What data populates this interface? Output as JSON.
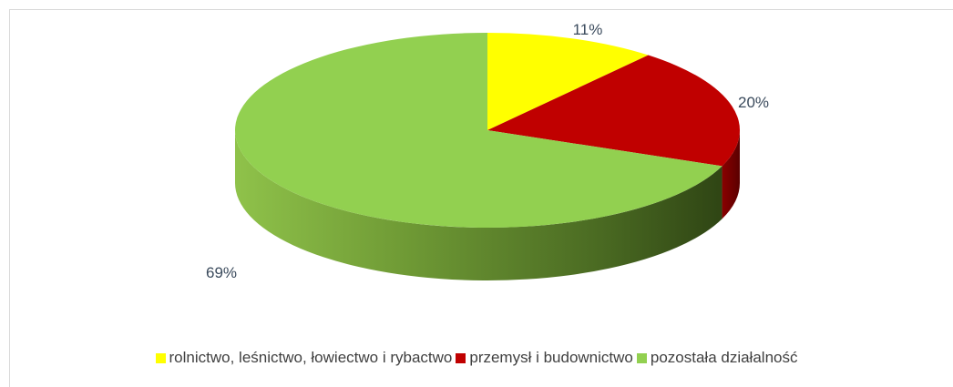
{
  "chart_data": {
    "type": "pie",
    "title": "",
    "legend_position": "bottom",
    "series": [
      {
        "name": "rolnictwo, leśnictwo, łowiectwo i rybactwo",
        "value": 11,
        "label": "11%",
        "color": "#ffff00"
      },
      {
        "name": "przemysł i budownictwo",
        "value": 20,
        "label": "20%",
        "color": "#c00000"
      },
      {
        "name": "pozostała działalność",
        "value": 69,
        "label": "69%",
        "color": "#92d050"
      }
    ]
  }
}
